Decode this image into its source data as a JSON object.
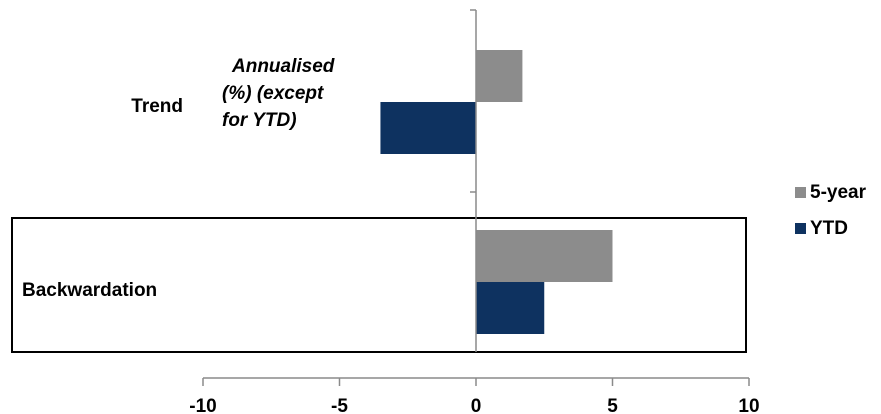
{
  "chart_data": {
    "type": "bar",
    "orientation": "horizontal",
    "categories": [
      "Trend",
      "Backwardation"
    ],
    "series": [
      {
        "name": "5-year",
        "values": [
          1.7,
          5.0
        ],
        "color": "#8c8c8c"
      },
      {
        "name": "YTD",
        "values": [
          -3.5,
          2.5
        ],
        "color": "#0e3260"
      }
    ],
    "xlim": [
      -10,
      10
    ],
    "xticks": [
      "-10",
      "-5",
      "0",
      "5",
      "10"
    ],
    "legend_position": "right",
    "annotation": [
      "Annualised",
      "(%) (except",
      "for YTD)"
    ],
    "highlighted_category": "Backwardation"
  }
}
